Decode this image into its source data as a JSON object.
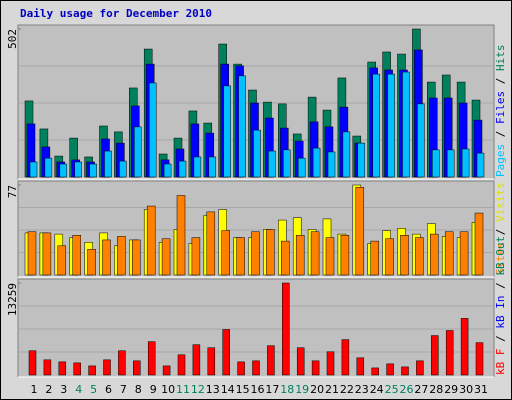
{
  "chart_data": [
    {
      "type": "bar",
      "title": "Daily usage for December 2010",
      "title_color": "#0000c0",
      "ylim": [
        0,
        502
      ],
      "yticks": [
        502
      ],
      "grid": true,
      "separator": " / ",
      "axis_label": [
        {
          "text": "Pages",
          "color": "#00c0ff"
        },
        {
          "text": "Files",
          "color": "#0000ff"
        },
        {
          "text": "Hits",
          "color": "#00805c"
        }
      ],
      "series": [
        {
          "color": "#00805c",
          "values": [
            258,
            163,
            71,
            132,
            68,
            173,
            153,
            302,
            434,
            78,
            132,
            224,
            183,
            451,
            383,
            295,
            254,
            248,
            146,
            271,
            227,
            336,
            139,
            390,
            424,
            417,
            502,
            322,
            346,
            322,
            261
          ]
        },
        {
          "color": "#0000ff",
          "values": [
            180,
            102,
            51,
            58,
            51,
            129,
            115,
            241,
            383,
            58,
            95,
            180,
            149,
            383,
            377,
            251,
            200,
            166,
            122,
            187,
            170,
            237,
            115,
            370,
            363,
            363,
            431,
            268,
            268,
            251,
            193
          ]
        },
        {
          "color": "#00c0ff",
          "values": [
            51,
            64,
            44,
            51,
            44,
            88,
            54,
            170,
            319,
            44,
            54,
            68,
            68,
            309,
            343,
            159,
            88,
            92,
            64,
            98,
            85,
            153,
            115,
            349,
            349,
            356,
            248,
            92,
            92,
            95,
            81
          ]
        }
      ]
    },
    {
      "type": "bar",
      "ylim": [
        0,
        77
      ],
      "yticks": [
        77
      ],
      "grid": true,
      "separator": " / ",
      "axis_label": [
        {
          "text": "Sites",
          "color": "#ff8000"
        },
        {
          "text": "Visits",
          "color": "#e0e000"
        }
      ],
      "series": [
        {
          "color": "#ffff00",
          "values": [
            36,
            36,
            35,
            32,
            28,
            36,
            25,
            30,
            56,
            28,
            39,
            27,
            51,
            56,
            32,
            32,
            39,
            47,
            49,
            39,
            48,
            35,
            77,
            27,
            38,
            40,
            35,
            44,
            33,
            32,
            45
          ]
        },
        {
          "color": "#ff8000",
          "values": [
            37,
            36,
            25,
            34,
            22,
            30,
            33,
            30,
            59,
            31,
            68,
            32,
            54,
            38,
            32,
            37,
            39,
            29,
            34,
            37,
            32,
            34,
            75,
            29,
            31,
            34,
            32,
            35,
            37,
            37,
            53
          ]
        }
      ]
    },
    {
      "type": "bar",
      "ylim": [
        0,
        13259
      ],
      "yticks": [
        13259
      ],
      "grid": true,
      "separator": " / ",
      "axis_label": [
        {
          "text": "kB F",
          "color": "#ff0000"
        },
        {
          "text": "kB In",
          "color": "#0000ff"
        },
        {
          "text": "kB Out",
          "color": "#00805c"
        }
      ],
      "categories": [
        "1",
        "2",
        "3",
        "4",
        "5",
        "6",
        "7",
        "8",
        "9",
        "10",
        "11",
        "12",
        "13",
        "14",
        "15",
        "16",
        "17",
        "18",
        "19",
        "20",
        "21",
        "22",
        "23",
        "24",
        "25",
        "26",
        "27",
        "28",
        "29",
        "30",
        "31"
      ],
      "highlight_indices": [
        3,
        4,
        10,
        11,
        17,
        18,
        24,
        25
      ],
      "highlight_color": "#00805c",
      "series": [
        {
          "color": "#ff0000",
          "values": [
            3497,
            2186,
            1894,
            1748,
            1311,
            2186,
            3497,
            2040,
            4808,
            1311,
            2914,
            4371,
            3934,
            6557,
            1894,
            2040,
            4225,
            13259,
            3934,
            2040,
            3351,
            5100,
            2477,
            1020,
            1603,
            1166,
            2040,
            5683,
            6411,
            8160,
            4662
          ]
        }
      ]
    }
  ]
}
